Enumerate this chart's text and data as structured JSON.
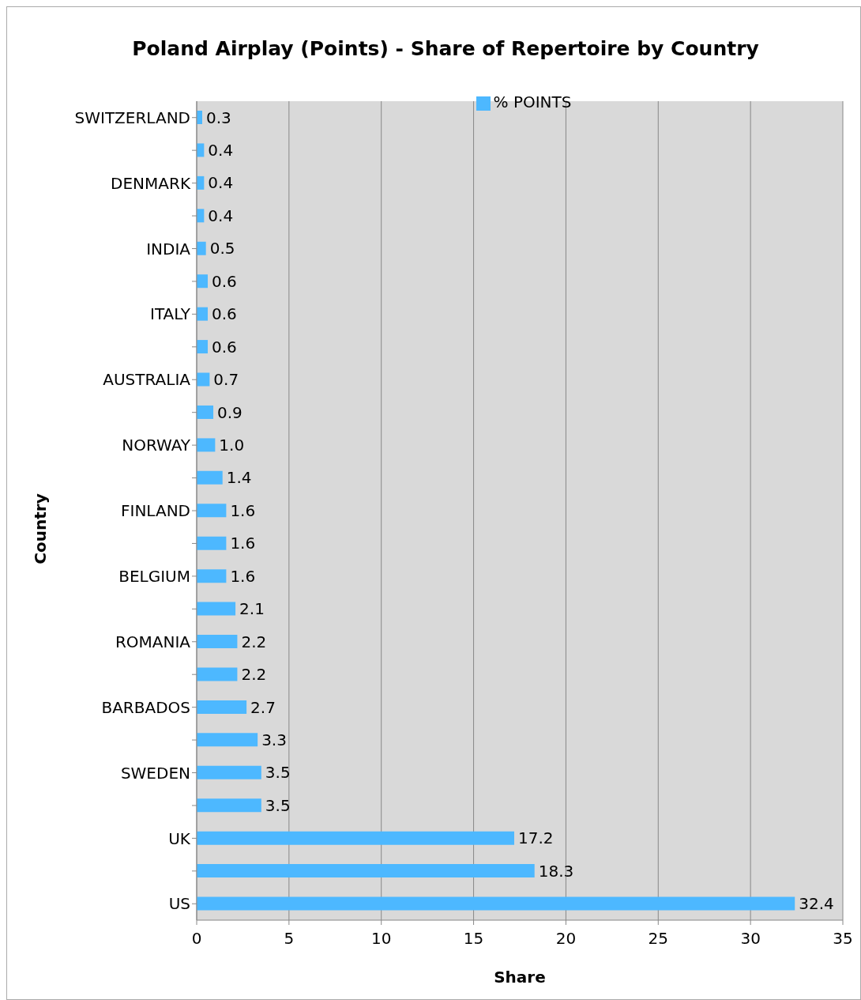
{
  "chart_data": {
    "type": "bar",
    "orientation": "horizontal",
    "title": "Poland Airplay (Points) - Share of Repertoire by Country",
    "xlabel": "Share",
    "ylabel": "Country",
    "categories": [
      "SWITZERLAND",
      null,
      "DENMARK",
      null,
      "INDIA",
      null,
      "ITALY",
      null,
      "AUSTRALIA",
      null,
      "NORWAY",
      null,
      "FINLAND",
      null,
      "BELGIUM",
      null,
      "ROMANIA",
      null,
      "BARBADOS",
      null,
      "SWEDEN",
      null,
      "UK",
      null,
      "US"
    ],
    "series": [
      {
        "name": "% POINTS",
        "color": "#4db8ff",
        "values": [
          0.3,
          0.4,
          0.4,
          0.4,
          0.5,
          0.6,
          0.6,
          0.6,
          0.7,
          0.9,
          1.0,
          1.4,
          1.6,
          1.6,
          1.6,
          2.1,
          2.2,
          2.2,
          2.7,
          3.3,
          3.5,
          3.5,
          17.2,
          18.3,
          32.4
        ],
        "value_labels": [
          "0.3",
          "0.4",
          "0.4",
          "0.4",
          "0.5",
          "0.6",
          "0.6",
          "0.6",
          "0.7",
          "0.9",
          "1.0",
          "1.4",
          "1.6",
          "1.6",
          "1.6",
          "2.1",
          "2.2",
          "2.2",
          "2.7",
          "3.3",
          "3.5",
          "3.5",
          "17.2",
          "18.3",
          "32.4"
        ]
      }
    ],
    "xlim": [
      0,
      35
    ],
    "xticks": [
      0,
      5,
      10,
      15,
      20,
      25,
      30,
      35
    ],
    "grid": "x",
    "legend": "top"
  }
}
